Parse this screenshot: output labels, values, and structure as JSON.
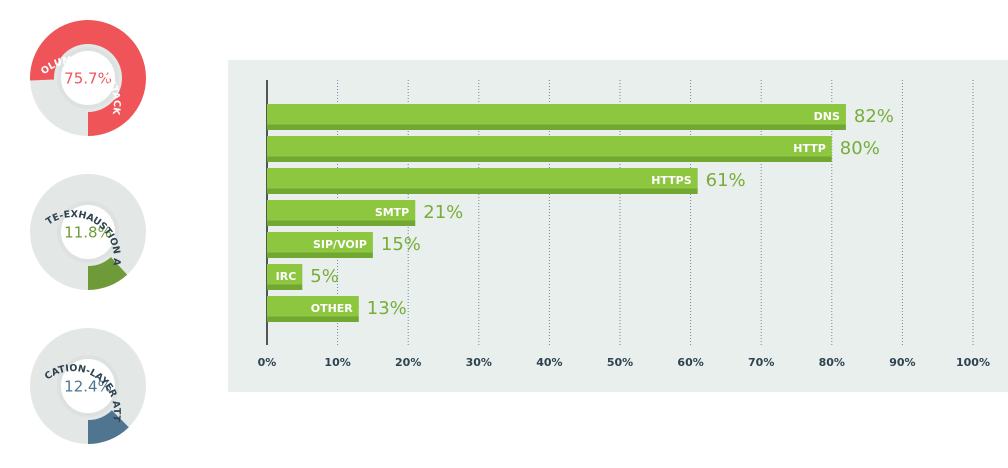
{
  "chart_data": [
    {
      "type": "donut",
      "title": "VOLUMETRIC ATTACKS",
      "values": [
        75.7
      ],
      "value_labels": [
        "75.7%"
      ],
      "color": "#ef5459"
    },
    {
      "type": "donut",
      "title": "TCP STATE-EXHAUSTION ATTACKS",
      "values": [
        11.8
      ],
      "value_labels": [
        "11.8%"
      ],
      "color": "#6f9a3a"
    },
    {
      "type": "donut",
      "title": "APPLICATION-LAYER ATTACKS",
      "values": [
        12.4
      ],
      "value_labels": [
        "12.4%"
      ],
      "color": "#4f7590"
    },
    {
      "type": "hbar",
      "categories": [
        "DNS",
        "HTTP",
        "HTTPS",
        "SMTP",
        "SIP/VOIP",
        "IRC",
        "OTHER"
      ],
      "values": [
        82,
        80,
        61,
        21,
        15,
        5,
        13
      ],
      "value_labels": [
        "82%",
        "80%",
        "61%",
        "21%",
        "15%",
        "5%",
        "13%"
      ],
      "color": "#8dc63f",
      "xlim": [
        0,
        100
      ],
      "xticks": [
        {
          "value": 0,
          "label": "0%"
        },
        {
          "value": 10,
          "label": "10%"
        },
        {
          "value": 20,
          "label": "20%"
        },
        {
          "value": 30,
          "label": "30%"
        },
        {
          "value": 40,
          "label": "40%"
        },
        {
          "value": 50,
          "label": "50%"
        },
        {
          "value": 60,
          "label": "60%"
        },
        {
          "value": 70,
          "label": "70%"
        },
        {
          "value": 80,
          "label": "80%"
        },
        {
          "value": 90,
          "label": "90%"
        },
        {
          "value": 100,
          "label": "100%"
        }
      ],
      "grid": true
    }
  ]
}
